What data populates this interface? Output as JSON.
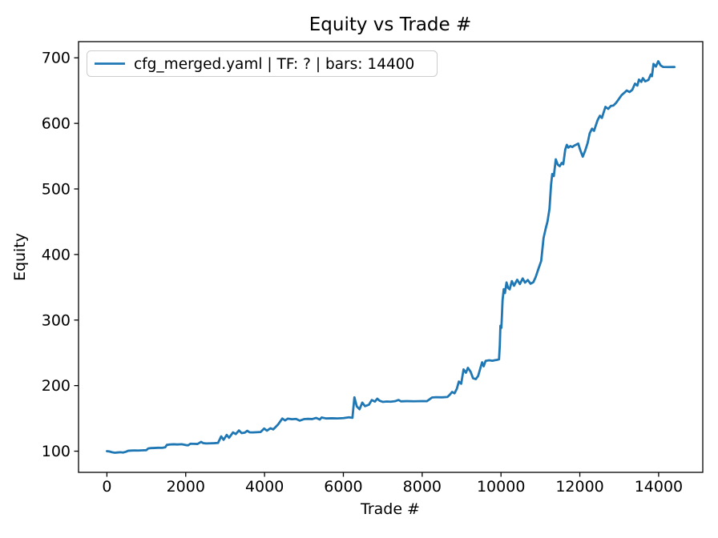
{
  "chart_data": {
    "type": "line",
    "title": "Equity vs Trade #",
    "xlabel": "Trade #",
    "ylabel": "Equity",
    "grid": false,
    "legend_position": "upper left",
    "background_color": "#ffffff",
    "axes_color": "#000000",
    "xlim": [
      -720,
      15120
    ],
    "ylim": [
      67.7,
      724.7
    ],
    "xtick_values": [
      0,
      2000,
      4000,
      6000,
      8000,
      10000,
      12000,
      14000
    ],
    "xtick_labels": [
      "0",
      "2000",
      "4000",
      "6000",
      "8000",
      "10000",
      "12000",
      "14000"
    ],
    "ytick_values": [
      100,
      200,
      300,
      400,
      500,
      600,
      700
    ],
    "ytick_labels": [
      "100",
      "200",
      "300",
      "400",
      "500",
      "600",
      "700"
    ],
    "series": [
      {
        "name": "cfg_merged.yaml | TF: ? | bars: 14400",
        "color": "#1f77b4",
        "points": [
          [
            0,
            100
          ],
          [
            60,
            99.6
          ],
          [
            130,
            98.4
          ],
          [
            200,
            97.6
          ],
          [
            270,
            98
          ],
          [
            340,
            98.4
          ],
          [
            410,
            97.9
          ],
          [
            480,
            99.1
          ],
          [
            540,
            100.6
          ],
          [
            620,
            100.9
          ],
          [
            700,
            101.1
          ],
          [
            800,
            101
          ],
          [
            900,
            101.3
          ],
          [
            1000,
            101.5
          ],
          [
            1050,
            104.2
          ],
          [
            1120,
            104.7
          ],
          [
            1200,
            104.9
          ],
          [
            1300,
            105.2
          ],
          [
            1400,
            105.1
          ],
          [
            1480,
            105.8
          ],
          [
            1520,
            109.6
          ],
          [
            1600,
            110.2
          ],
          [
            1700,
            110.5
          ],
          [
            1780,
            110.2
          ],
          [
            1900,
            110.6
          ],
          [
            2000,
            109.3
          ],
          [
            2060,
            108.9
          ],
          [
            2120,
            111.4
          ],
          [
            2200,
            111.2
          ],
          [
            2300,
            111
          ],
          [
            2390,
            114.2
          ],
          [
            2440,
            112.3
          ],
          [
            2520,
            111.8
          ],
          [
            2620,
            112
          ],
          [
            2720,
            112.2
          ],
          [
            2820,
            112.6
          ],
          [
            2900,
            122.6
          ],
          [
            2960,
            117.3
          ],
          [
            3040,
            124.8
          ],
          [
            3100,
            120.4
          ],
          [
            3200,
            128.6
          ],
          [
            3270,
            126.1
          ],
          [
            3350,
            131.6
          ],
          [
            3420,
            127.5
          ],
          [
            3500,
            128.3
          ],
          [
            3560,
            131.1
          ],
          [
            3620,
            128.8
          ],
          [
            3700,
            128.6
          ],
          [
            3800,
            128.9
          ],
          [
            3900,
            129.2
          ],
          [
            3990,
            134.6
          ],
          [
            4060,
            131.3
          ],
          [
            4150,
            134.9
          ],
          [
            4220,
            133.2
          ],
          [
            4340,
            140.5
          ],
          [
            4450,
            149.8
          ],
          [
            4520,
            146.9
          ],
          [
            4590,
            149.6
          ],
          [
            4700,
            148.8
          ],
          [
            4800,
            149.2
          ],
          [
            4890,
            146.6
          ],
          [
            5000,
            148.9
          ],
          [
            5100,
            149.3
          ],
          [
            5210,
            149
          ],
          [
            5310,
            150.7
          ],
          [
            5400,
            148.3
          ],
          [
            5450,
            151.4
          ],
          [
            5560,
            149.9
          ],
          [
            5700,
            150.2
          ],
          [
            5850,
            150
          ],
          [
            6000,
            150.4
          ],
          [
            6140,
            151.7
          ],
          [
            6230,
            150.9
          ],
          [
            6280,
            182.2
          ],
          [
            6340,
            168.4
          ],
          [
            6410,
            163.9
          ],
          [
            6480,
            174.1
          ],
          [
            6550,
            168.6
          ],
          [
            6650,
            171
          ],
          [
            6720,
            178
          ],
          [
            6800,
            175.6
          ],
          [
            6860,
            180.1
          ],
          [
            6920,
            176.9
          ],
          [
            7000,
            175.2
          ],
          [
            7100,
            175.8
          ],
          [
            7200,
            175.5
          ],
          [
            7310,
            176.2
          ],
          [
            7400,
            178.1
          ],
          [
            7460,
            176
          ],
          [
            7600,
            176.3
          ],
          [
            7800,
            176.1
          ],
          [
            8000,
            176.4
          ],
          [
            8120,
            176.2
          ],
          [
            8250,
            181.9
          ],
          [
            8350,
            182.3
          ],
          [
            8500,
            182.1
          ],
          [
            8640,
            182.6
          ],
          [
            8700,
            186.1
          ],
          [
            8760,
            190.4
          ],
          [
            8820,
            188.2
          ],
          [
            8880,
            195.3
          ],
          [
            8930,
            206.2
          ],
          [
            8990,
            202.9
          ],
          [
            9050,
            224.7
          ],
          [
            9110,
            219.6
          ],
          [
            9160,
            227.2
          ],
          [
            9230,
            221
          ],
          [
            9290,
            211.3
          ],
          [
            9360,
            209.9
          ],
          [
            9420,
            214.8
          ],
          [
            9480,
            227.4
          ],
          [
            9520,
            235.6
          ],
          [
            9560,
            229.5
          ],
          [
            9610,
            237.8
          ],
          [
            9700,
            238.6
          ],
          [
            9780,
            237.9
          ],
          [
            9850,
            238.8
          ],
          [
            9900,
            239.3
          ],
          [
            9950,
            240.1
          ],
          [
            9970,
            262
          ],
          [
            9985,
            291.3
          ],
          [
            10010,
            288.2
          ],
          [
            10040,
            330.5
          ],
          [
            10070,
            347.1
          ],
          [
            10100,
            341.2
          ],
          [
            10140,
            357.4
          ],
          [
            10180,
            349.1
          ],
          [
            10220,
            346.9
          ],
          [
            10275,
            359.4
          ],
          [
            10330,
            352.3
          ],
          [
            10410,
            361.5
          ],
          [
            10480,
            354.9
          ],
          [
            10550,
            363.5
          ],
          [
            10610,
            357.1
          ],
          [
            10680,
            361.1
          ],
          [
            10750,
            355.4
          ],
          [
            10820,
            357.7
          ],
          [
            10880,
            365.6
          ],
          [
            10950,
            378.1
          ],
          [
            11020,
            390.2
          ],
          [
            11080,
            425.2
          ],
          [
            11140,
            441.1
          ],
          [
            11180,
            450.3
          ],
          [
            11230,
            469.5
          ],
          [
            11270,
            506.1
          ],
          [
            11300,
            522.8
          ],
          [
            11340,
            519.6
          ],
          [
            11390,
            545.2
          ],
          [
            11440,
            537.1
          ],
          [
            11490,
            534.7
          ],
          [
            11540,
            539.7
          ],
          [
            11580,
            537.6
          ],
          [
            11630,
            560.1
          ],
          [
            11670,
            567.3
          ],
          [
            11710,
            563
          ],
          [
            11760,
            565.4
          ],
          [
            11810,
            563.9
          ],
          [
            11860,
            566.1
          ],
          [
            11960,
            569.2
          ],
          [
            12010,
            559.5
          ],
          [
            12075,
            549.2
          ],
          [
            12140,
            559.1
          ],
          [
            12200,
            570.4
          ],
          [
            12250,
            584.7
          ],
          [
            12310,
            592
          ],
          [
            12360,
            588.6
          ],
          [
            12450,
            604.8
          ],
          [
            12510,
            611.7
          ],
          [
            12560,
            608.3
          ],
          [
            12650,
            625.2
          ],
          [
            12720,
            622.1
          ],
          [
            12790,
            626.7
          ],
          [
            12850,
            627.2
          ],
          [
            12920,
            631.3
          ],
          [
            12990,
            637.1
          ],
          [
            13060,
            643.1
          ],
          [
            13130,
            646.7
          ],
          [
            13190,
            650.2
          ],
          [
            13260,
            647.8
          ],
          [
            13330,
            651.1
          ],
          [
            13400,
            660.7
          ],
          [
            13460,
            657.6
          ],
          [
            13500,
            666.8
          ],
          [
            13560,
            663.3
          ],
          [
            13600,
            669
          ],
          [
            13660,
            664.1
          ],
          [
            13740,
            666.2
          ],
          [
            13800,
            674.5
          ],
          [
            13830,
            671.9
          ],
          [
            13870,
            690.7
          ],
          [
            13930,
            686.6
          ],
          [
            13990,
            694.8
          ],
          [
            14050,
            688.4
          ],
          [
            14110,
            686.1
          ],
          [
            14250,
            685.9
          ],
          [
            14400,
            686
          ]
        ]
      }
    ],
    "legend": {
      "border_color": "#cccccc",
      "fill_color": "#ffffff",
      "fill_opacity": 0.8
    }
  }
}
